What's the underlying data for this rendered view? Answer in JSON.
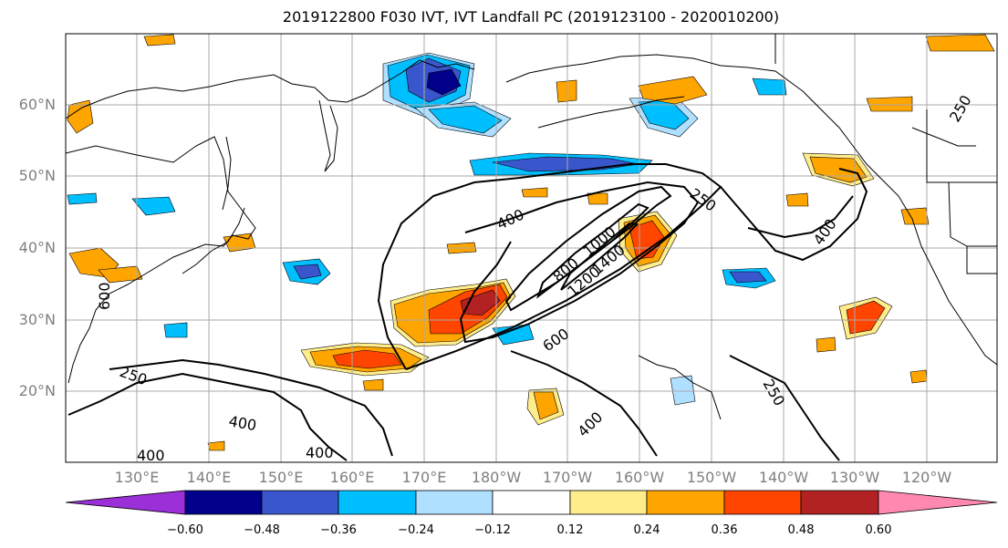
{
  "title": "2019122800 F030 IVT, IVT Landfall PC (2019123100 - 2020010200)",
  "lat_labels": [
    "60°N",
    "50°N",
    "40°N",
    "30°N",
    "20°N"
  ],
  "lon_labels": [
    "130°E",
    "140°E",
    "150°E",
    "160°E",
    "170°E",
    "180°W",
    "170°W",
    "160°W",
    "150°W",
    "140°W",
    "130°W",
    "120°W"
  ],
  "contour_labels": [
    "250",
    "400",
    "600",
    "800",
    "1000",
    "1200",
    "1400",
    "250",
    "400",
    "250",
    "400",
    "400",
    "250",
    "400",
    "400",
    "600"
  ],
  "colorbar": {
    "ticks": [
      "−0.60",
      "−0.48",
      "−0.36",
      "−0.24",
      "−0.12",
      "0.12",
      "0.24",
      "0.36",
      "0.48",
      "0.60"
    ],
    "colors": [
      "#9b30d9",
      "#00008b",
      "#3a56cc",
      "#00bfff",
      "#b0e0ff",
      "#ffffff",
      "#ffec8b",
      "#ffa500",
      "#ff4500",
      "#b22222",
      "#ff88b0"
    ]
  },
  "fill_colors": {
    "neg1": "#b0e0ff",
    "neg2": "#00bfff",
    "neg3": "#3a56cc",
    "neg4": "#00008b",
    "pos1": "#ffec8b",
    "pos2": "#ffa500",
    "pos3": "#ff4500",
    "pos4": "#b22222"
  }
}
